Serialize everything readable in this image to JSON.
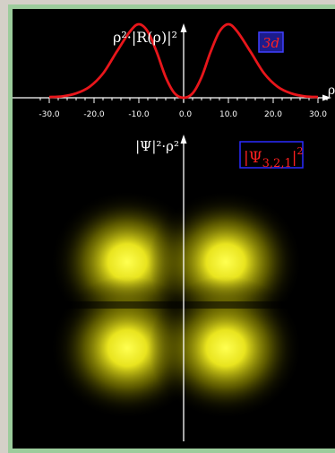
{
  "top_plot": {
    "y_label": "ρ²·|R(ρ)|²",
    "x_axis_label": "ρ",
    "tag": "3d",
    "tick_labels": [
      "-30.0",
      "-20.0",
      "-10.0",
      "0.0",
      "10.0",
      "20.0",
      "30.0"
    ],
    "tick_values": [
      -30,
      -20,
      -10,
      0,
      10,
      20,
      30
    ],
    "curve_color": "#e8161b"
  },
  "density_plot": {
    "y_label": "|Ψ|²·ρ²",
    "tag_symbol": "Ψ",
    "tag_subscript": "3,2,1",
    "tag_power": "2",
    "lobe_color": "#ffff30"
  },
  "chart_data": {
    "type": "line",
    "title": "",
    "xlabel": "ρ",
    "ylabel": "ρ²·|R(ρ)|²",
    "xlim": [
      -32,
      32
    ],
    "series": [
      {
        "name": "3d",
        "x": [
          -30,
          -27,
          -24,
          -21,
          -18,
          -15,
          -12,
          -10,
          -8,
          -6,
          -4,
          -2,
          0,
          2,
          4,
          6,
          8,
          10,
          12,
          15,
          18,
          21,
          24,
          27,
          30
        ],
        "values": [
          0.01,
          0.02,
          0.06,
          0.15,
          0.33,
          0.62,
          0.9,
          1.0,
          0.9,
          0.62,
          0.28,
          0.06,
          0.0,
          0.06,
          0.28,
          0.62,
          0.9,
          1.0,
          0.9,
          0.62,
          0.33,
          0.15,
          0.06,
          0.02,
          0.01
        ]
      }
    ]
  }
}
